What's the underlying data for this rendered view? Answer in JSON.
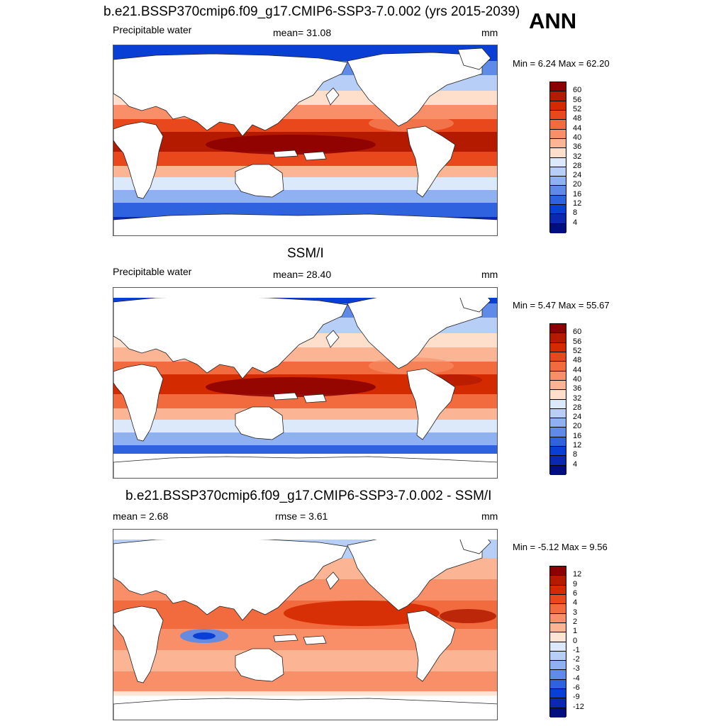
{
  "season": "ANN",
  "units": "mm",
  "panels": [
    {
      "title": "b.e21.BSSP370cmip6.f09_g17.CMIP6-SSP3-7.0.002 (yrs 2015-2039)",
      "left_label": "Precipitable water",
      "center_label": "mean=  31.08",
      "units": "mm",
      "minmax": "Min =   6.24 Max =  62.20",
      "kind": "model"
    },
    {
      "title": "SSM/I",
      "left_label": "Precipitable water",
      "center_label": "mean=  28.40",
      "units": "mm",
      "minmax": "Min =   5.47 Max =  55.67",
      "kind": "obs"
    },
    {
      "title": "b.e21.BSSP370cmip6.f09_g17.CMIP6-SSP3-7.0.002 - SSM/I",
      "left_label": "mean =   2.68",
      "center_label": "rmse =   3.61",
      "units": "mm",
      "minmax": "Min =  -5.12 Max =   9.56",
      "kind": "diff"
    }
  ],
  "colorbars": {
    "absolute": {
      "levels": [
        "60",
        "56",
        "52",
        "48",
        "44",
        "40",
        "36",
        "32",
        "28",
        "24",
        "20",
        "16",
        "12",
        "8",
        "4"
      ],
      "colors": [
        "#8b0000",
        "#b31a00",
        "#d42a00",
        "#e8481c",
        "#f26b3f",
        "#f88f68",
        "#fbb594",
        "#fddfcc",
        "#dce9fb",
        "#b7cff7",
        "#8fb1f2",
        "#5f8ae8",
        "#2f62df",
        "#0a3fd6",
        "#0a28b0",
        "#000f80"
      ]
    },
    "difference": {
      "levels": [
        "12",
        "9",
        "6",
        "4",
        "3",
        "2",
        "1",
        "0",
        "-1",
        "-2",
        "-3",
        "-4",
        "-6",
        "-9",
        "-12"
      ],
      "colors": [
        "#8b0000",
        "#b31a00",
        "#d42a00",
        "#e8481c",
        "#f26b3f",
        "#f88f68",
        "#fbb594",
        "#fde4d4",
        "#dce9fb",
        "#b7cff7",
        "#8fb1f2",
        "#5f8ae8",
        "#2f62df",
        "#0a3fd6",
        "#0a28b0",
        "#000f80"
      ]
    }
  }
}
